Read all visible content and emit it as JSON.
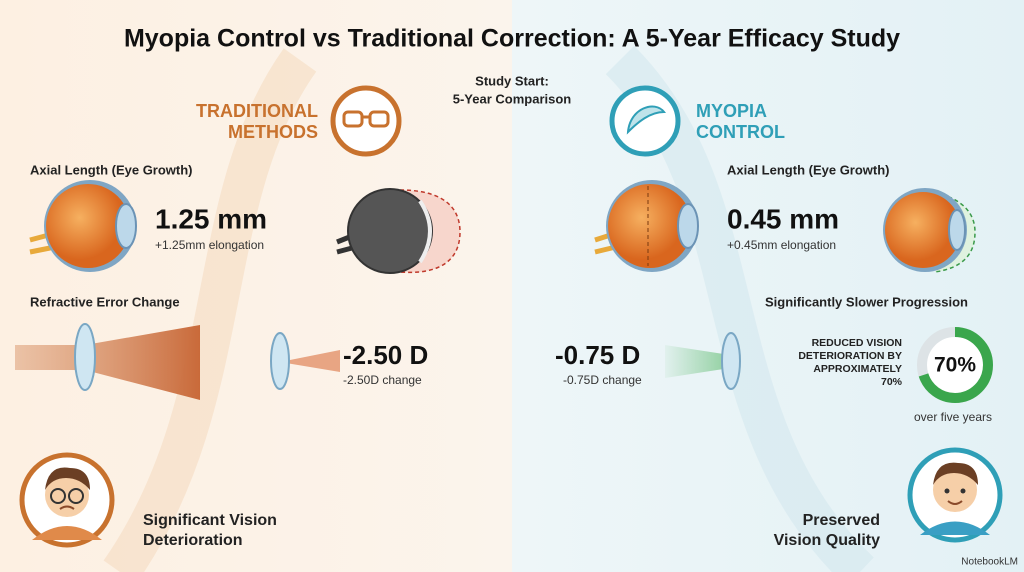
{
  "title": "Myopia Control vs Traditional Correction: A 5-Year Efficacy Study",
  "center": {
    "lines": [
      "Study Start:",
      "5-Year Comparison"
    ]
  },
  "left": {
    "heading": [
      "TRADITIONAL",
      "METHODS"
    ],
    "axial_label": "Axial Length (Eye Growth)",
    "axial_value": "1.25 mm",
    "axial_note": "+1.25mm elongation",
    "refractive_label": "Refractive Error Change",
    "refractive_value": "-2.50 D",
    "refractive_note": "-2.50D change",
    "outcome": [
      "Significant Vision",
      "Deterioration"
    ]
  },
  "right": {
    "heading": [
      "MYOPIA",
      "CONTROL"
    ],
    "axial_label": "Axial Length (Eye Growth)",
    "axial_value": "0.45 mm",
    "axial_note": "+0.45mm elongation",
    "progression_label": "Significantly Slower Progression",
    "refractive_value": "-0.75 D",
    "refractive_note": "-0.75D change",
    "reduction_text": [
      "REDUCED VISION",
      "DETERIORATION BY",
      "APPROXIMATELY",
      "70%"
    ],
    "reduction": {
      "value": 70,
      "value_label": "70%",
      "caption": "over five years"
    },
    "outcome": [
      "Preserved",
      "Vision Quality"
    ]
  },
  "footer": {
    "brand": "NotebookLM"
  }
}
